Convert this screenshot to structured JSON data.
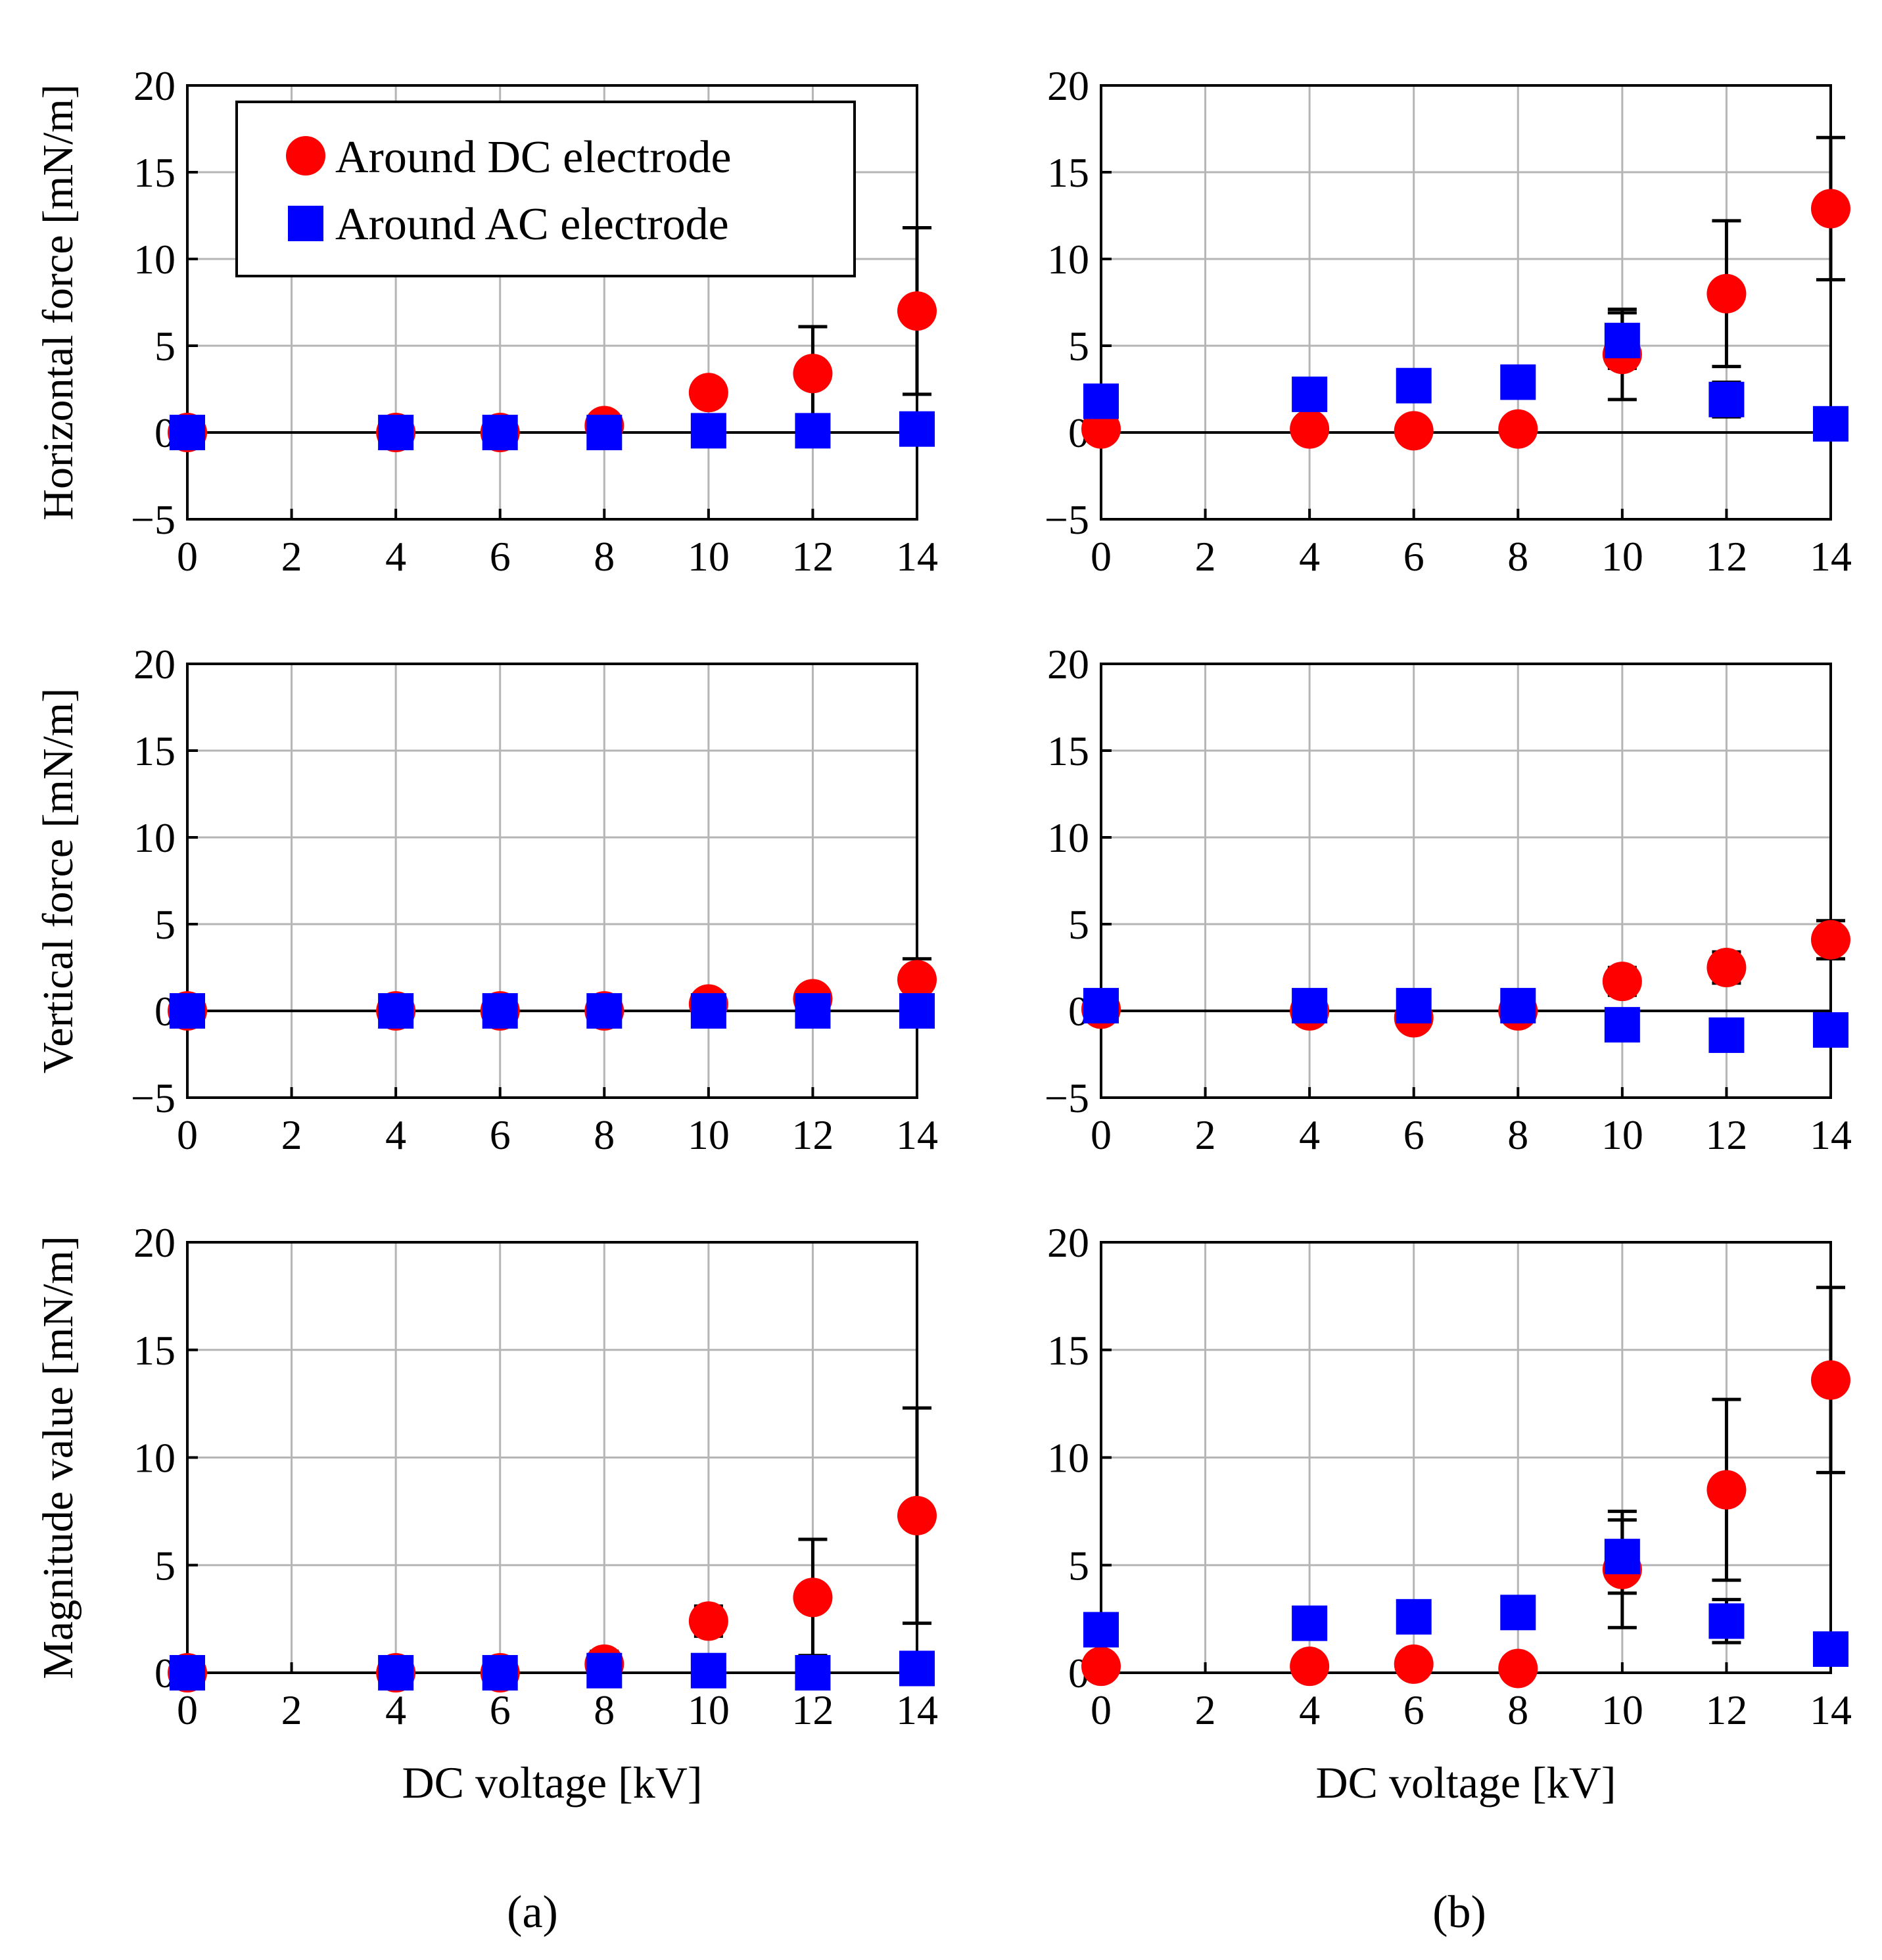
{
  "figure": {
    "panel_labels": [
      "(a)",
      "(b)"
    ],
    "legend": {
      "dc": "Around DC electrode",
      "ac": "Around AC electrode",
      "dc_color": "#ff0000",
      "ac_color": "#0000ff"
    },
    "xlabel": "DC voltage [kV]"
  },
  "chart_data": [
    {
      "type": "scatter",
      "panel": "a",
      "row": 0,
      "ylabel": "Horizontal force [mN/m]",
      "xlabel": "",
      "xlim": [
        0,
        14
      ],
      "ylim": [
        -5,
        20
      ],
      "xticks": [
        0,
        2,
        4,
        6,
        8,
        10,
        12,
        14
      ],
      "yticks": [
        -5,
        0,
        5,
        10,
        15,
        20
      ],
      "series": [
        {
          "name": "Around DC electrode",
          "x": [
            0,
            4,
            6,
            8,
            10,
            12,
            14
          ],
          "y": [
            0,
            0,
            0,
            0.4,
            2.3,
            3.4,
            7.0
          ],
          "err": [
            0,
            0,
            0,
            0.6,
            0.6,
            2.7,
            4.8
          ]
        },
        {
          "name": "Around AC electrode",
          "x": [
            0,
            4,
            6,
            8,
            10,
            12,
            14
          ],
          "y": [
            0,
            0,
            0,
            0,
            0.1,
            0.1,
            0.2
          ],
          "err": [
            0,
            0,
            0,
            0,
            0,
            0.6,
            0.3
          ]
        }
      ]
    },
    {
      "type": "scatter",
      "panel": "b",
      "row": 0,
      "ylabel": "",
      "xlabel": "",
      "xlim": [
        0,
        14
      ],
      "ylim": [
        -5,
        20
      ],
      "xticks": [
        0,
        2,
        4,
        6,
        8,
        10,
        12,
        14
      ],
      "yticks": [
        -5,
        0,
        5,
        10,
        15,
        20
      ],
      "series": [
        {
          "name": "Around DC electrode",
          "x": [
            0,
            4,
            6,
            8,
            10,
            12,
            14
          ],
          "y": [
            0.2,
            0.2,
            0.1,
            0.2,
            4.5,
            8.0,
            12.9
          ],
          "err": [
            0,
            0.1,
            0.1,
            0.2,
            2.6,
            4.2,
            4.1
          ]
        },
        {
          "name": "Around AC electrode",
          "x": [
            0,
            4,
            6,
            8,
            10,
            12,
            14
          ],
          "y": [
            1.8,
            2.2,
            2.7,
            2.9,
            5.3,
            1.9,
            0.5
          ],
          "err": [
            0,
            0.2,
            0.2,
            0.1,
            1.6,
            1.0,
            0.3
          ]
        }
      ]
    },
    {
      "type": "scatter",
      "panel": "a",
      "row": 1,
      "ylabel": "Vertical force [mN/m]",
      "xlabel": "",
      "xlim": [
        0,
        14
      ],
      "ylim": [
        -5,
        20
      ],
      "xticks": [
        0,
        2,
        4,
        6,
        8,
        10,
        12,
        14
      ],
      "yticks": [
        -5,
        0,
        5,
        10,
        15,
        20
      ],
      "series": [
        {
          "name": "Around DC electrode",
          "x": [
            0,
            4,
            6,
            8,
            10,
            12,
            14
          ],
          "y": [
            0,
            0,
            0,
            0,
            0.4,
            0.7,
            1.8
          ],
          "err": [
            0,
            0,
            0,
            0,
            0.2,
            0.5,
            1.2
          ]
        },
        {
          "name": "Around AC electrode",
          "x": [
            0,
            4,
            6,
            8,
            10,
            12,
            14
          ],
          "y": [
            0,
            0,
            0,
            0,
            0,
            0,
            0
          ],
          "err": [
            0,
            0,
            0,
            0,
            0,
            0,
            0.6
          ]
        }
      ]
    },
    {
      "type": "scatter",
      "panel": "b",
      "row": 1,
      "ylabel": "",
      "xlabel": "",
      "xlim": [
        0,
        14
      ],
      "ylim": [
        -5,
        20
      ],
      "xticks": [
        0,
        2,
        4,
        6,
        8,
        10,
        12,
        14
      ],
      "yticks": [
        -5,
        0,
        5,
        10,
        15,
        20
      ],
      "series": [
        {
          "name": "Around DC electrode",
          "x": [
            0,
            4,
            6,
            8,
            10,
            12,
            14
          ],
          "y": [
            0.1,
            0,
            -0.4,
            0,
            1.7,
            2.5,
            4.1
          ],
          "err": [
            0,
            0.2,
            0.4,
            0.2,
            0.8,
            0.9,
            1.1
          ]
        },
        {
          "name": "Around AC electrode",
          "x": [
            0,
            4,
            6,
            8,
            10,
            12,
            14
          ],
          "y": [
            0.3,
            0.3,
            0.3,
            0.3,
            -0.8,
            -1.4,
            -1.1
          ],
          "err": [
            0.2,
            0.2,
            0.2,
            0.2,
            0.3,
            0.2,
            0.1
          ]
        }
      ]
    },
    {
      "type": "scatter",
      "panel": "a",
      "row": 2,
      "ylabel": "Magnitude value [mN/m]",
      "xlabel": "DC voltage [kV]",
      "xlim": [
        0,
        14
      ],
      "ylim": [
        0,
        20
      ],
      "xticks": [
        0,
        2,
        4,
        6,
        8,
        10,
        12,
        14
      ],
      "yticks": [
        0,
        5,
        10,
        15,
        20
      ],
      "series": [
        {
          "name": "Around DC electrode",
          "x": [
            0,
            4,
            6,
            8,
            10,
            12,
            14
          ],
          "y": [
            0,
            0,
            0,
            0.4,
            2.4,
            3.5,
            7.3
          ],
          "err": [
            0,
            0,
            0,
            0.6,
            0.7,
            2.7,
            5.0
          ]
        },
        {
          "name": "Around AC electrode",
          "x": [
            0,
            4,
            6,
            8,
            10,
            12,
            14
          ],
          "y": [
            0,
            0,
            0,
            0.1,
            0.1,
            0,
            0.2
          ],
          "err": [
            0,
            0,
            0,
            0.1,
            0,
            0.7,
            0.1
          ]
        }
      ]
    },
    {
      "type": "scatter",
      "panel": "b",
      "row": 2,
      "ylabel": "",
      "xlabel": "DC voltage [kV]",
      "xlim": [
        0,
        14
      ],
      "ylim": [
        0,
        20
      ],
      "xticks": [
        0,
        2,
        4,
        6,
        8,
        10,
        12,
        14
      ],
      "yticks": [
        0,
        5,
        10,
        15,
        20
      ],
      "series": [
        {
          "name": "Around DC electrode",
          "x": [
            0,
            4,
            6,
            8,
            10,
            12,
            14
          ],
          "y": [
            0.3,
            0.3,
            0.4,
            0.2,
            4.8,
            8.5,
            13.6
          ],
          "err": [
            0,
            0,
            0.3,
            0.3,
            2.7,
            4.2,
            4.3
          ]
        },
        {
          "name": "Around AC electrode",
          "x": [
            0,
            4,
            6,
            8,
            10,
            12,
            14
          ],
          "y": [
            2.0,
            2.3,
            2.6,
            2.8,
            5.4,
            2.4,
            1.1
          ],
          "err": [
            0,
            0,
            0,
            0,
            1.7,
            1.0,
            0.3
          ]
        }
      ]
    }
  ]
}
